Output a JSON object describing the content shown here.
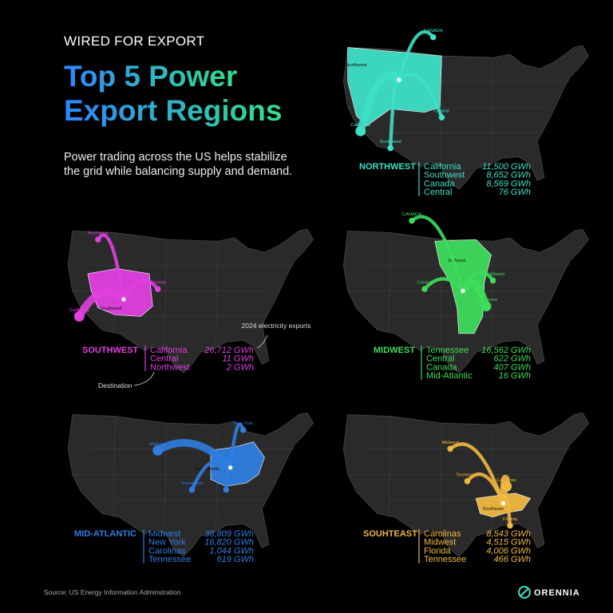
{
  "header": {
    "kicker": "WIRED FOR EXPORT",
    "title_lines": [
      "Top 5 Power",
      "Export Regions"
    ],
    "subtitle": "Power trading across the US helps stabilize the grid while balancing supply and demand."
  },
  "regions": [
    {
      "name": "NORTHWEST",
      "color": "#3de0c8",
      "exports": [
        {
          "destination": "California",
          "amount": "11,500 GWh"
        },
        {
          "destination": "Southwest",
          "amount": "8,652 GWh"
        },
        {
          "destination": "Canada",
          "amount": "8,569 GWh"
        },
        {
          "destination": "Central",
          "amount": "76 GWh"
        }
      ],
      "map_labels": [
        "Northwest",
        "California",
        "Southwest",
        "CANADA",
        "Central"
      ]
    },
    {
      "name": "SOUTHWEST",
      "color": "#e040e0",
      "exports": [
        {
          "destination": "California",
          "amount": "26,712 GWh"
        },
        {
          "destination": "Central",
          "amount": "11 GWh"
        },
        {
          "destination": "Northwest",
          "amount": "2 GWh"
        }
      ],
      "map_labels": [
        "Southwest",
        "California",
        "Central",
        "Northwest"
      ]
    },
    {
      "name": "MIDWEST",
      "color": "#3ddc5c",
      "exports": [
        {
          "destination": "Tennessee",
          "amount": "16,562 GWh"
        },
        {
          "destination": "Central",
          "amount": "622 GWh"
        },
        {
          "destination": "Canada",
          "amount": "407 GWh"
        },
        {
          "destination": "Mid-Atlantic",
          "amount": "16 GWh"
        }
      ],
      "map_labels": [
        "Midwest",
        "Tennessee",
        "Central",
        "CANADA",
        "Mid-Atlantic"
      ]
    },
    {
      "name": "MID-ATLANTIC",
      "color": "#2f7de0",
      "exports": [
        {
          "destination": "Midwest",
          "amount": "38,809 GWh"
        },
        {
          "destination": "New York",
          "amount": "16,820 GWh"
        },
        {
          "destination": "Carolinas",
          "amount": "1,044 GWh"
        },
        {
          "destination": "Tennessee",
          "amount": "619 GWh"
        }
      ],
      "map_labels": [
        "Mid-Atlantic",
        "Midwest",
        "New York",
        "Carolinas",
        "Tennessee"
      ]
    },
    {
      "name": "SOUHTEAST",
      "color": "#f0b840",
      "exports": [
        {
          "destination": "Carolinas",
          "amount": "8,543 GWh"
        },
        {
          "destination": "Midwest",
          "amount": "4,515 GWh"
        },
        {
          "destination": "Florida",
          "amount": "4,006 GWh"
        },
        {
          "destination": "Tennessee",
          "amount": "466 GWh"
        }
      ],
      "map_labels": [
        "Southeast",
        "Carolinas",
        "Midwest",
        "Florida",
        "Tennessee"
      ]
    }
  ],
  "annotations": {
    "exports": "2024 electricity exports",
    "destination": "Destination"
  },
  "footer": {
    "source": "Source: US Energy Information Adminstration",
    "brand": "ORENNIA"
  }
}
